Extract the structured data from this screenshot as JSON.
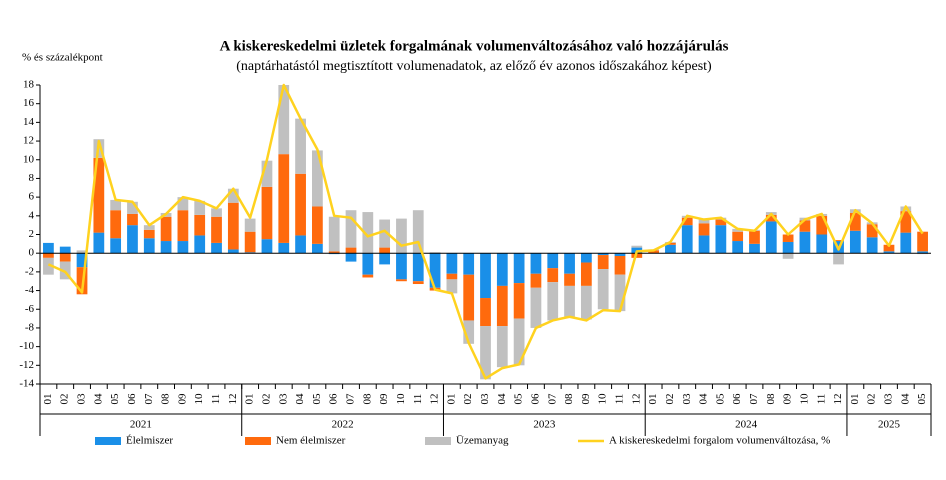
{
  "chart_data": {
    "type": "bar",
    "stacked": true,
    "title": "A kiskereskedelmi üzletek forgalmának volumenváltozásához való hozzájárulás",
    "subtitle": "(naptárhatástól megtisztított volumenadatok, az előző év azonos időszakához képest)",
    "y_label": "% és százalékpont",
    "categories": [
      "01",
      "02",
      "03",
      "04",
      "05",
      "06",
      "07",
      "08",
      "09",
      "10",
      "11",
      "12",
      "01",
      "02",
      "03",
      "04",
      "05",
      "06",
      "07",
      "08",
      "09",
      "10",
      "11",
      "12",
      "01",
      "02",
      "03",
      "04",
      "05",
      "06",
      "07",
      "08",
      "09",
      "10",
      "11",
      "12",
      "01",
      "02",
      "03",
      "04",
      "05",
      "06",
      "07",
      "08",
      "09",
      "10",
      "11",
      "12",
      "01",
      "02",
      "03",
      "04",
      "05"
    ],
    "x_groups": [
      "2021",
      "2022",
      "2023",
      "2024",
      "2025"
    ],
    "ylim": [
      -14,
      18
    ],
    "yticks": [
      -14,
      -12,
      -10,
      -8,
      -6,
      -4,
      -2,
      0,
      2,
      4,
      6,
      8,
      10,
      12,
      14,
      16,
      18
    ],
    "grid": false,
    "series": [
      {
        "name": "Élelmiszer",
        "type": "bar",
        "color": "#1a8fe8",
        "values": [
          1.1,
          0.7,
          -1.5,
          2.2,
          1.6,
          3.0,
          1.6,
          1.3,
          1.3,
          1.9,
          1.1,
          0.4,
          0.1,
          1.5,
          1.1,
          1.9,
          1.0,
          -0.1,
          -0.9,
          -2.3,
          -1.2,
          -2.8,
          -3.0,
          -3.7,
          -2.2,
          -2.3,
          -4.8,
          -3.5,
          -3.2,
          -2.2,
          -1.6,
          -2.2,
          -1.0,
          -0.2,
          -0.3,
          0.6,
          0.0,
          0.9,
          3.0,
          1.9,
          3.0,
          1.3,
          1.0,
          3.4,
          1.2,
          2.3,
          2.0,
          1.3,
          2.4,
          1.7,
          0.2,
          2.2,
          0.2
        ]
      },
      {
        "name": "Nem élelmiszer",
        "type": "bar",
        "color": "#ff6a0d",
        "values": [
          -0.5,
          -0.9,
          -2.9,
          8.0,
          3.0,
          1.2,
          0.9,
          2.6,
          3.3,
          2.2,
          2.8,
          5.0,
          2.2,
          5.6,
          9.5,
          6.6,
          4.0,
          0.2,
          0.6,
          -0.3,
          0.6,
          -0.2,
          -0.3,
          -0.3,
          -0.6,
          -4.9,
          -3.0,
          -4.3,
          -3.8,
          -1.5,
          -1.5,
          -1.3,
          -2.5,
          -1.5,
          -2.0,
          -0.5,
          0.3,
          0.2,
          0.8,
          1.3,
          0.6,
          1.0,
          1.4,
          0.7,
          0.8,
          1.2,
          2.0,
          0.1,
          1.9,
          1.4,
          0.7,
          2.3,
          2.1
        ]
      },
      {
        "name": "Üzemanyag",
        "type": "bar",
        "color": "#c0c0c0",
        "values": [
          -1.8,
          -1.9,
          0.3,
          2.0,
          1.1,
          1.3,
          0.5,
          0.4,
          1.4,
          1.5,
          0.9,
          1.5,
          1.4,
          2.8,
          7.4,
          5.9,
          6.0,
          3.7,
          4.0,
          4.4,
          3.0,
          3.7,
          4.6,
          0.1,
          -1.5,
          -2.5,
          -5.7,
          -4.4,
          -5.0,
          -4.3,
          -4.1,
          -3.3,
          -3.6,
          -4.3,
          -3.9,
          0.2,
          0.1,
          0.1,
          0.2,
          0.4,
          0.2,
          0.3,
          0.1,
          0.3,
          -0.6,
          0.3,
          0.2,
          -1.2,
          0.4,
          0.2,
          0.0,
          0.5,
          -0.1
        ]
      },
      {
        "name": "A kiskereskedelmi forgalom volumenváltozása, %",
        "type": "line",
        "color": "#ffd21f",
        "values": [
          -1.2,
          -2.0,
          -4.2,
          12.0,
          5.7,
          5.5,
          3.0,
          4.2,
          6.0,
          5.6,
          4.8,
          6.9,
          3.8,
          10.0,
          18.0,
          14.4,
          11.1,
          4.0,
          3.8,
          1.8,
          2.4,
          0.8,
          1.2,
          -3.9,
          -4.3,
          -9.6,
          -13.4,
          -12.3,
          -11.9,
          -8.0,
          -7.2,
          -6.8,
          -7.2,
          -6.1,
          -6.2,
          0.2,
          0.3,
          1.2,
          4.0,
          3.6,
          3.8,
          2.6,
          2.4,
          4.2,
          2.0,
          3.6,
          4.2,
          0.4,
          4.6,
          3.2,
          0.8,
          5.0,
          2.1
        ]
      }
    ]
  }
}
